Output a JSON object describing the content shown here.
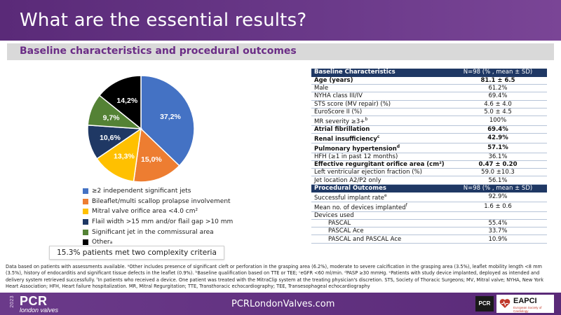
{
  "header": {
    "title": "What are the essential results?"
  },
  "subtitle": "Baseline characteristics and procedural outcomes",
  "chart_data": {
    "type": "pie",
    "title": "",
    "start_angle_deg": 0,
    "slices": [
      {
        "label": "≥2 independent significant jets",
        "value": 37.2,
        "display": "37,2%",
        "color": "#4472c4"
      },
      {
        "label": "Bileaflet/multi scallop prolapse involvement",
        "value": 15.0,
        "display": "15,0%",
        "color": "#ed7d31"
      },
      {
        "label": "Mitral valve orifice area <4.0 cm²",
        "value": 13.3,
        "display": "13,3%",
        "color": "#ffc000"
      },
      {
        "label": "Flail width >15 mm and/or flail gap >10 mm",
        "value": 10.6,
        "display": "10,6%",
        "color": "#1f3864"
      },
      {
        "label": "Significant jet in the commissural area",
        "value": 9.7,
        "display": "9,7%",
        "color": "#548235"
      },
      {
        "label": "Other",
        "label_sup": "a",
        "value": 14.2,
        "display": "14,2%",
        "color": "#000000"
      }
    ],
    "legend_position": "bottom"
  },
  "complexity_note": "15.3% patients met two complexity criteria",
  "table": {
    "baseline_header": {
      "label": "Baseline Characteristics",
      "value": "N=98 (% , mean ± SD)"
    },
    "baseline_rows": [
      {
        "label": "Age (years)",
        "value": "81.1 ± 6.5",
        "bold": true
      },
      {
        "label": "Male",
        "value": "61.2%"
      },
      {
        "label": "NYHA class III/IV",
        "value": "69.4%"
      },
      {
        "label": "STS score (MV repair) (%)",
        "value": "4.6 ± 4.0"
      },
      {
        "label": "EuroScore II (%)",
        "value": "5.0 ± 4.5"
      },
      {
        "label": "MR severity ≥3+",
        "sup": "b",
        "value": "100%"
      },
      {
        "label": "Atrial fibrillation",
        "value": "69.4%",
        "bold": true
      },
      {
        "label": "Renal insufficiency",
        "sup": "c",
        "value": "42.9%",
        "bold": true
      },
      {
        "label": "Pulmonary hypertension",
        "sup": "d",
        "value": "57.1%",
        "bold": true
      },
      {
        "label": "HFH (≥1 in past 12 months)",
        "value": "36.1%"
      },
      {
        "label": "Effective regurgitant orifice area (cm²)",
        "value": "0.47 ± 0.20",
        "bold": true
      },
      {
        "label": "Left ventricular ejection fraction (%)",
        "value": "59.0 ±10.3"
      },
      {
        "label": "Jet location A2/P2 only",
        "value": "56.1%"
      }
    ],
    "procedural_header": {
      "label": "Procedural Outcomes",
      "value": "N=98 (% , mean ± SD)"
    },
    "procedural_rows": [
      {
        "label": "Successful implant rate",
        "sup": "e",
        "value": "92.9%"
      },
      {
        "label": "Mean no. of devices implanted",
        "sup": "f",
        "value": "1.6 ± 0.6"
      },
      {
        "label": "Devices used",
        "value": ""
      },
      {
        "label": "PASCAL",
        "value": "55.4%",
        "indent": true
      },
      {
        "label": "PASCAL Ace",
        "value": "33.7%",
        "indent": true
      },
      {
        "label": "PASCAL and PASCAL Ace",
        "value": "10.9%",
        "indent": true
      }
    ]
  },
  "footnote": {
    "line1": "Data based on patients with assessments available. ᵃOther includes presence of significant cleft or perforation in the grasping area (6.2%), moderate to severe calcification in the grasping area (3.5%), leaflet mobility length <8 mm (3.5%), history of endocarditis and significant tissue defects in the leaflet (0.9%). ᵇBaseline qualification based on TTE or TEE; ᶜeGFR <60 ml/min. ᵈPASP ≥30 mmHg. ᵉPatients with study device implanted, deployed as intended and delivery system retrieved successfully. ᶠIn patients who received a device. One patient was treated with the MitraClip system at the treating physician's discretion.",
    "line2": "STS, Society of Thoracic Surgeons; MV, Mitral valve; NYHA, New York Heart Association; HFH, Heart failure hospitalization. MR, Mitral Regurgitation; TTE, Transthoracic echocardiography; TEE, Transesophageal echocardiography"
  },
  "footer": {
    "year": "2023",
    "brand": "PCR",
    "brand_sub": "london valves",
    "url": "PCRLondonValves.com",
    "logo_pcr": "PCR",
    "logo_eapci": "EAPCI",
    "logo_eapci_sub": "European Society of Cardiology"
  }
}
